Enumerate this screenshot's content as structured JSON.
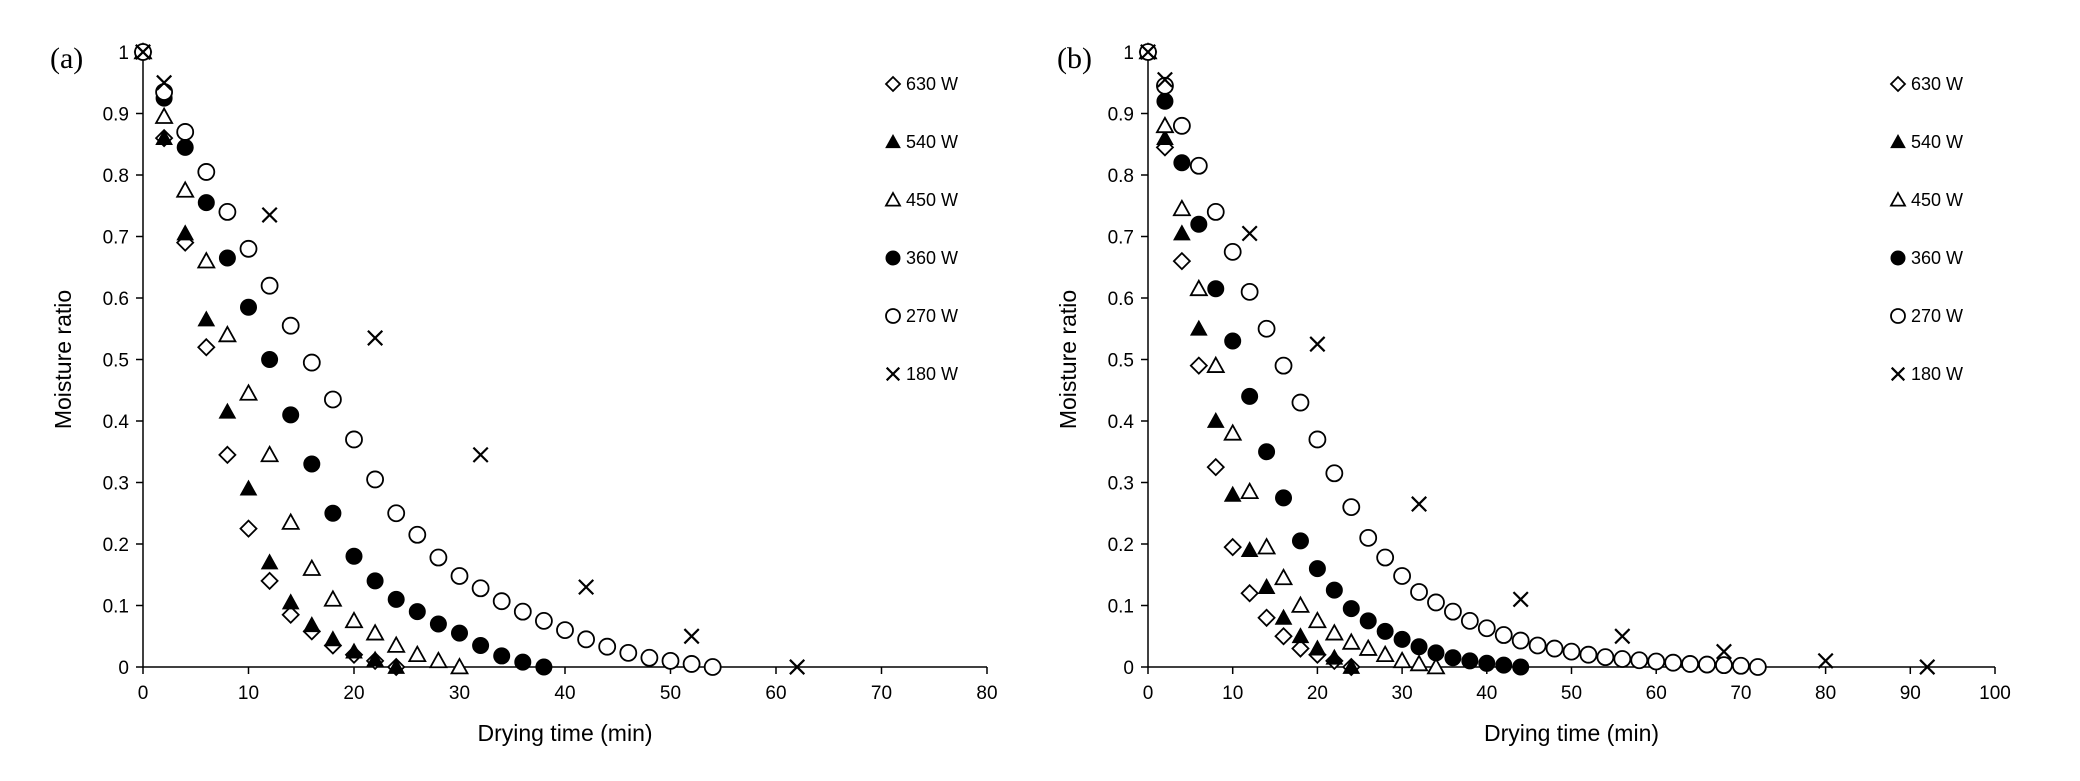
{
  "chart_data": [
    {
      "type": "scatter",
      "panel_label": "(a)",
      "xlabel": "Drying time (min)",
      "ylabel": "Moisture ratio",
      "xlim": [
        0,
        80
      ],
      "ylim": [
        0,
        1
      ],
      "xticks": [
        0,
        10,
        20,
        30,
        40,
        50,
        60,
        70,
        80
      ],
      "yticks": [
        0,
        0.1,
        0.2,
        0.3,
        0.4,
        0.5,
        0.6,
        0.7,
        0.8,
        0.9,
        1
      ],
      "grid": false,
      "legend_position": "right",
      "series": [
        {
          "name": "630 W",
          "marker": "diamond-open",
          "x": [
            0,
            2,
            4,
            6,
            8,
            10,
            12,
            14,
            16,
            18,
            20,
            22,
            24
          ],
          "y": [
            1,
            0.86,
            0.69,
            0.52,
            0.345,
            0.225,
            0.14,
            0.085,
            0.058,
            0.035,
            0.02,
            0.01,
            0
          ]
        },
        {
          "name": "540 W",
          "marker": "triangle-filled",
          "x": [
            0,
            2,
            4,
            6,
            8,
            10,
            12,
            14,
            16,
            18,
            20,
            22,
            24
          ],
          "y": [
            1,
            0.86,
            0.705,
            0.565,
            0.415,
            0.29,
            0.17,
            0.105,
            0.068,
            0.045,
            0.025,
            0.012,
            0
          ]
        },
        {
          "name": "450 W",
          "marker": "triangle-open",
          "x": [
            0,
            2,
            4,
            6,
            8,
            10,
            12,
            14,
            16,
            18,
            20,
            22,
            24,
            26,
            28,
            30
          ],
          "y": [
            1,
            0.895,
            0.775,
            0.66,
            0.54,
            0.445,
            0.345,
            0.235,
            0.16,
            0.11,
            0.075,
            0.055,
            0.035,
            0.02,
            0.01,
            0
          ]
        },
        {
          "name": "360 W",
          "marker": "circle-filled",
          "x": [
            0,
            2,
            4,
            6,
            8,
            10,
            12,
            14,
            16,
            18,
            20,
            22,
            24,
            26,
            28,
            30,
            32,
            34,
            36,
            38
          ],
          "y": [
            1,
            0.925,
            0.845,
            0.755,
            0.665,
            0.585,
            0.5,
            0.41,
            0.33,
            0.25,
            0.18,
            0.14,
            0.11,
            0.09,
            0.07,
            0.055,
            0.035,
            0.018,
            0.008,
            0
          ]
        },
        {
          "name": "270 W",
          "marker": "circle-open",
          "x": [
            0,
            2,
            4,
            6,
            8,
            10,
            12,
            14,
            16,
            18,
            20,
            22,
            24,
            26,
            28,
            30,
            32,
            34,
            36,
            38,
            40,
            42,
            44,
            46,
            48,
            50,
            52,
            54
          ],
          "y": [
            1,
            0.935,
            0.87,
            0.805,
            0.74,
            0.68,
            0.62,
            0.555,
            0.495,
            0.435,
            0.37,
            0.305,
            0.25,
            0.215,
            0.178,
            0.148,
            0.128,
            0.107,
            0.09,
            0.075,
            0.06,
            0.045,
            0.033,
            0.023,
            0.015,
            0.01,
            0.005,
            0
          ]
        },
        {
          "name": "180 W",
          "marker": "cross",
          "x": [
            0,
            2,
            12,
            22,
            32,
            42,
            52,
            62
          ],
          "y": [
            1,
            0.95,
            0.735,
            0.535,
            0.345,
            0.13,
            0.05,
            0
          ]
        }
      ]
    },
    {
      "type": "scatter",
      "panel_label": "(b)",
      "xlabel": "Drying time (min)",
      "ylabel": "Moisture ratio",
      "xlim": [
        0,
        100
      ],
      "ylim": [
        0,
        1
      ],
      "xticks": [
        0,
        10,
        20,
        30,
        40,
        50,
        60,
        70,
        80,
        90,
        100
      ],
      "yticks": [
        0,
        0.1,
        0.2,
        0.3,
        0.4,
        0.5,
        0.6,
        0.7,
        0.8,
        0.9,
        1
      ],
      "grid": false,
      "legend_position": "right",
      "series": [
        {
          "name": "630 W",
          "marker": "diamond-open",
          "x": [
            0,
            2,
            4,
            6,
            8,
            10,
            12,
            14,
            16,
            18,
            20,
            22,
            24
          ],
          "y": [
            1,
            0.845,
            0.66,
            0.49,
            0.325,
            0.195,
            0.12,
            0.08,
            0.05,
            0.03,
            0.02,
            0.01,
            0
          ]
        },
        {
          "name": "540 W",
          "marker": "triangle-filled",
          "x": [
            0,
            2,
            4,
            6,
            8,
            10,
            12,
            14,
            16,
            18,
            20,
            22,
            24
          ],
          "y": [
            1,
            0.86,
            0.705,
            0.55,
            0.4,
            0.28,
            0.19,
            0.13,
            0.08,
            0.05,
            0.03,
            0.015,
            0
          ]
        },
        {
          "name": "450 W",
          "marker": "triangle-open",
          "x": [
            0,
            2,
            4,
            6,
            8,
            10,
            12,
            14,
            16,
            18,
            20,
            22,
            24,
            26,
            28,
            30,
            32,
            34
          ],
          "y": [
            1,
            0.88,
            0.745,
            0.615,
            0.49,
            0.38,
            0.285,
            0.195,
            0.145,
            0.1,
            0.075,
            0.055,
            0.04,
            0.03,
            0.02,
            0.01,
            0.005,
            0
          ]
        },
        {
          "name": "360 W",
          "marker": "circle-filled",
          "x": [
            0,
            2,
            4,
            6,
            8,
            10,
            12,
            14,
            16,
            18,
            20,
            22,
            24,
            26,
            28,
            30,
            32,
            34,
            36,
            38,
            40,
            42,
            44
          ],
          "y": [
            1,
            0.92,
            0.82,
            0.72,
            0.615,
            0.53,
            0.44,
            0.35,
            0.275,
            0.205,
            0.16,
            0.125,
            0.095,
            0.075,
            0.058,
            0.045,
            0.033,
            0.023,
            0.015,
            0.01,
            0.006,
            0.003,
            0
          ]
        },
        {
          "name": "270 W",
          "marker": "circle-open",
          "x": [
            0,
            2,
            4,
            6,
            8,
            10,
            12,
            14,
            16,
            18,
            20,
            22,
            24,
            26,
            28,
            30,
            32,
            34,
            36,
            38,
            40,
            42,
            44,
            46,
            48,
            50,
            52,
            54,
            56,
            58,
            60,
            62,
            64,
            66,
            68,
            70,
            72
          ],
          "y": [
            1,
            0.945,
            0.88,
            0.815,
            0.74,
            0.675,
            0.61,
            0.55,
            0.49,
            0.43,
            0.37,
            0.315,
            0.26,
            0.21,
            0.178,
            0.148,
            0.122,
            0.105,
            0.09,
            0.075,
            0.063,
            0.052,
            0.043,
            0.035,
            0.03,
            0.025,
            0.02,
            0.016,
            0.013,
            0.011,
            0.009,
            0.007,
            0.005,
            0.004,
            0.003,
            0.002,
            0
          ]
        },
        {
          "name": "180 W",
          "marker": "cross",
          "x": [
            0,
            2,
            12,
            20,
            32,
            44,
            56,
            68,
            80,
            92
          ],
          "y": [
            1,
            0.955,
            0.705,
            0.525,
            0.265,
            0.11,
            0.05,
            0.025,
            0.01,
            0
          ]
        }
      ]
    }
  ]
}
